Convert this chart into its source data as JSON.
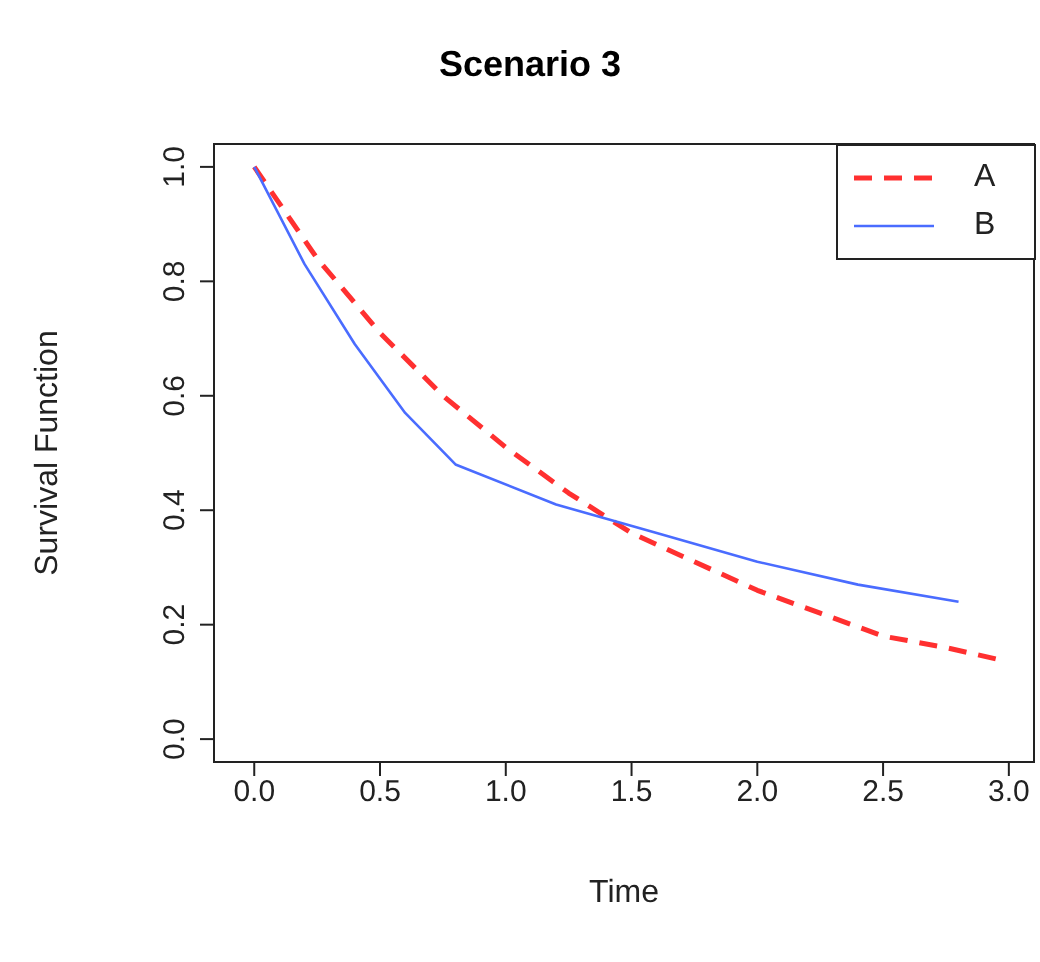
{
  "chart_data": {
    "type": "line",
    "title": "Scenario 3",
    "xlabel": "Time",
    "ylabel": "Survival Function",
    "xlim": [
      -0.16,
      3.1
    ],
    "ylim": [
      -0.04,
      1.04
    ],
    "xticks": [
      {
        "value": 0,
        "label": "0.0"
      },
      {
        "value": 0.5,
        "label": "0.5"
      },
      {
        "value": 1,
        "label": "1.0"
      },
      {
        "value": 1.5,
        "label": "1.5"
      },
      {
        "value": 2,
        "label": "2.0"
      },
      {
        "value": 2.5,
        "label": "2.5"
      },
      {
        "value": 3,
        "label": "3.0"
      }
    ],
    "yticks": [
      {
        "value": 0,
        "label": "0.0"
      },
      {
        "value": 0.2,
        "label": "0.2"
      },
      {
        "value": 0.4,
        "label": "0.4"
      },
      {
        "value": 0.6,
        "label": "0.6"
      },
      {
        "value": 0.8,
        "label": "0.8"
      },
      {
        "value": 1,
        "label": "1.0"
      }
    ],
    "grid": false,
    "legend": "top right",
    "marker": "none",
    "series": [
      {
        "name": "A",
        "color": "#ff3030",
        "line_style": "dashed",
        "x": [
          0,
          0.25,
          0.5,
          0.75,
          1,
          1.25,
          1.5,
          1.75,
          2,
          2.25,
          2.5,
          2.75,
          2.95
        ],
        "values": [
          1,
          0.84,
          0.71,
          0.6,
          0.51,
          0.43,
          0.36,
          0.31,
          0.26,
          0.22,
          0.18,
          0.16,
          0.14
        ]
      },
      {
        "name": "B",
        "color": "#4a6cff",
        "line_style": "solid",
        "x": [
          0,
          0.2,
          0.4,
          0.6,
          0.8,
          1.2,
          1.6,
          2,
          2.4,
          2.8
        ],
        "values": [
          1,
          0.83,
          0.69,
          0.57,
          0.48,
          0.41,
          0.36,
          0.31,
          0.27,
          0.24
        ]
      }
    ]
  }
}
